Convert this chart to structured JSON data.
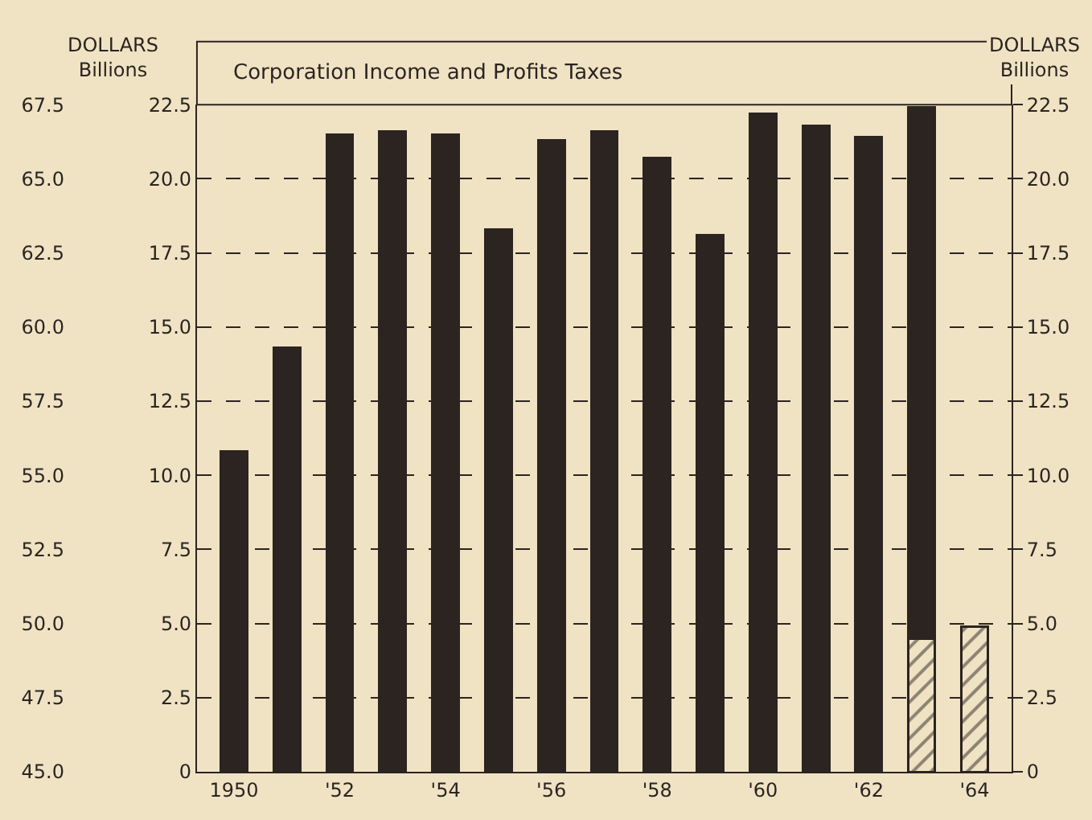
{
  "chart_data": {
    "type": "bar",
    "title": "Corporation Income and Profits Taxes",
    "categories": [
      "1950",
      null,
      "'52",
      null,
      "'54",
      null,
      "'56",
      null,
      "'58",
      null,
      "'60",
      null,
      "'62",
      null,
      "'64"
    ],
    "stacked": true,
    "series": [
      {
        "color": "#2b2420",
        "values": [
          null,
          null,
          null,
          null,
          null,
          null,
          null,
          null,
          null,
          null,
          null,
          null,
          null,
          4.5,
          4.9
        ]
      },
      {
        "color": "#2b2420",
        "values": [
          10.8,
          14.3,
          21.5,
          21.6,
          21.5,
          18.3,
          21.3,
          21.6,
          20.7,
          18.1,
          22.2,
          21.8,
          21.4,
          17.9,
          null
        ]
      }
    ],
    "ylim": [
      0,
      22.5
    ],
    "yticks": [
      0,
      2.5,
      {
        "value": 5,
        "label": "5.0"
      },
      7.5,
      {
        "value": 10,
        "label": "10.0"
      },
      12.5,
      {
        "value": 15,
        "label": "15.0"
      },
      17.5,
      {
        "value": 20,
        "label": "20.0"
      },
      22.5
    ],
    "y2lim": [
      0,
      22.5
    ],
    "y2ticks": [
      0,
      2.5,
      {
        "value": 5,
        "label": "5.0"
      },
      7.5,
      {
        "value": 10,
        "label": "10.0"
      },
      12.5,
      {
        "value": 15,
        "label": "15.0"
      },
      17.5,
      {
        "value": 20,
        "label": "20.0"
      },
      22.5
    ],
    "y2label": "DOLLARS\nBillions",
    "y3lim": [
      45,
      67.5
    ],
    "y3ticks": [
      {
        "value": 45,
        "label": "45.0"
      },
      47.5,
      {
        "value": 50,
        "label": "50.0"
      },
      52.5,
      {
        "value": 55,
        "label": "55.0"
      },
      57.5,
      {
        "value": 60,
        "label": "60.0"
      },
      62.5,
      {
        "value": 65,
        "label": "65.0"
      },
      67.5
    ],
    "y3label": "DOLLARS\nBillions",
    "grid": "y",
    "legend": false
  }
}
